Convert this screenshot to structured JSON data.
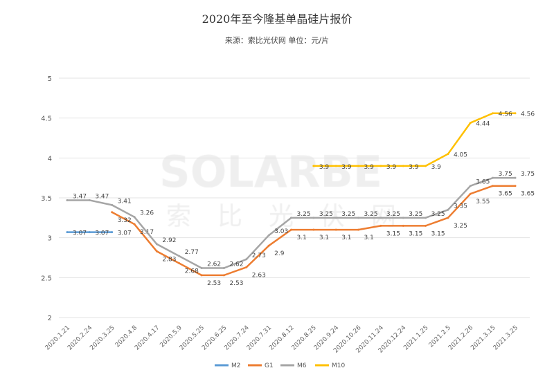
{
  "chart_data": {
    "type": "line",
    "title": "2020年至今隆基单晶硅片报价",
    "subtitle": "来源：索比光伏网  单位：元/片",
    "watermark": "SOLARBE 索比光伏网",
    "xlabel": "",
    "ylabel": "",
    "ylim": [
      2,
      5
    ],
    "yticks": [
      "2",
      "2.5",
      "3",
      "3.5",
      "4",
      "4.5",
      "5"
    ],
    "grid": true,
    "legend": "bottom",
    "categories": [
      "2020.1.21",
      "2020.2.24",
      "2020.3.25",
      "2020.4.8",
      "2020.4.17",
      "2020.5.9",
      "2020.5.25",
      "2020.6.25",
      "2020.7.24",
      "2020.7.31",
      "2020.8.12",
      "2020.8.25",
      "2020.9.24",
      "2020.10.26",
      "2020.11.24",
      "2020.12.24",
      "2021.1.25",
      "2021.2.5",
      "2021.2.26",
      "2021.3.15",
      "2021.3.25"
    ],
    "series": [
      {
        "name": "M2",
        "color": "#5b9bd5",
        "values": [
          3.07,
          3.07,
          3.07,
          null,
          null,
          null,
          null,
          null,
          null,
          null,
          null,
          null,
          null,
          null,
          null,
          null,
          null,
          null,
          null,
          null,
          null
        ]
      },
      {
        "name": "G1",
        "color": "#ed7d31",
        "values": [
          null,
          null,
          3.32,
          3.17,
          2.83,
          2.68,
          2.53,
          2.53,
          2.63,
          2.9,
          3.1,
          3.1,
          3.1,
          3.1,
          3.15,
          3.15,
          3.15,
          3.25,
          3.55,
          3.65,
          3.65
        ]
      },
      {
        "name": "M6",
        "color": "#a5a5a5",
        "values": [
          3.47,
          3.47,
          3.41,
          3.26,
          2.92,
          2.77,
          2.62,
          2.62,
          2.73,
          3.03,
          3.25,
          3.25,
          3.25,
          3.25,
          3.25,
          3.25,
          3.25,
          3.35,
          3.65,
          3.75,
          3.75
        ]
      },
      {
        "name": "M10",
        "color": "#ffc000",
        "values": [
          null,
          null,
          null,
          null,
          null,
          null,
          null,
          null,
          null,
          null,
          null,
          3.9,
          3.9,
          3.9,
          3.9,
          3.9,
          3.9,
          4.05,
          4.44,
          4.56,
          4.56
        ]
      }
    ]
  }
}
